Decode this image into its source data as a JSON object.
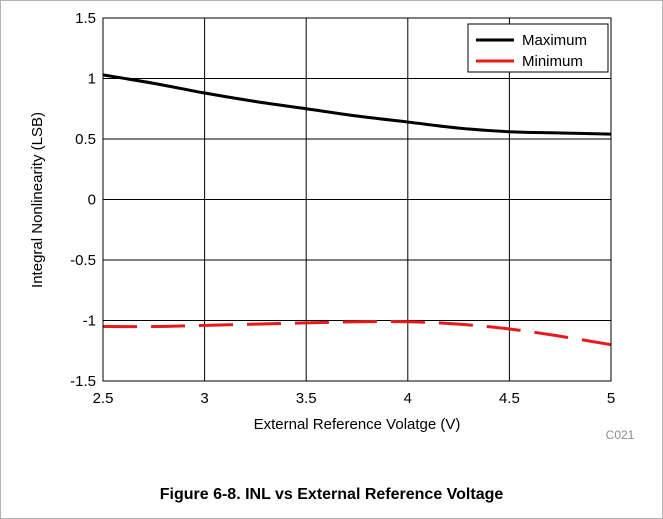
{
  "caption": "Figure 6-8. INL vs External Reference Voltage",
  "code": "C021",
  "chart_data": {
    "type": "line",
    "xlabel": "External Reference Volatge (V)",
    "ylabel": "Integral Nonlinearity (LSB)",
    "xlim": [
      2.5,
      5
    ],
    "ylim": [
      -1.5,
      1.5
    ],
    "xticks": [
      2.5,
      3,
      3.5,
      4,
      4.5,
      5
    ],
    "yticks": [
      -1.5,
      -1,
      -0.5,
      0,
      0.5,
      1,
      1.5
    ],
    "xtick_labels": [
      "2.5",
      "3",
      "3.5",
      "4",
      "4.5",
      "5"
    ],
    "ytick_labels": [
      "-1.5",
      "-1",
      "-0.5",
      "0",
      "0.5",
      "1",
      "1.5"
    ],
    "grid": true,
    "legend_position": "top-right",
    "series": [
      {
        "name": "Maximum",
        "color": "#000000",
        "dash": "solid",
        "x": [
          2.5,
          2.75,
          3.0,
          3.25,
          3.5,
          3.75,
          4.0,
          4.25,
          4.5,
          4.75,
          5.0
        ],
        "y": [
          1.03,
          0.96,
          0.88,
          0.81,
          0.75,
          0.69,
          0.64,
          0.59,
          0.56,
          0.55,
          0.54
        ]
      },
      {
        "name": "Minimum",
        "color": "#e8191c",
        "dash": "dashed",
        "x": [
          2.5,
          2.75,
          3.0,
          3.25,
          3.5,
          3.75,
          4.0,
          4.25,
          4.5,
          4.75,
          5.0
        ],
        "y": [
          -1.05,
          -1.05,
          -1.04,
          -1.03,
          -1.02,
          -1.01,
          -1.01,
          -1.03,
          -1.07,
          -1.13,
          -1.2
        ]
      }
    ]
  }
}
